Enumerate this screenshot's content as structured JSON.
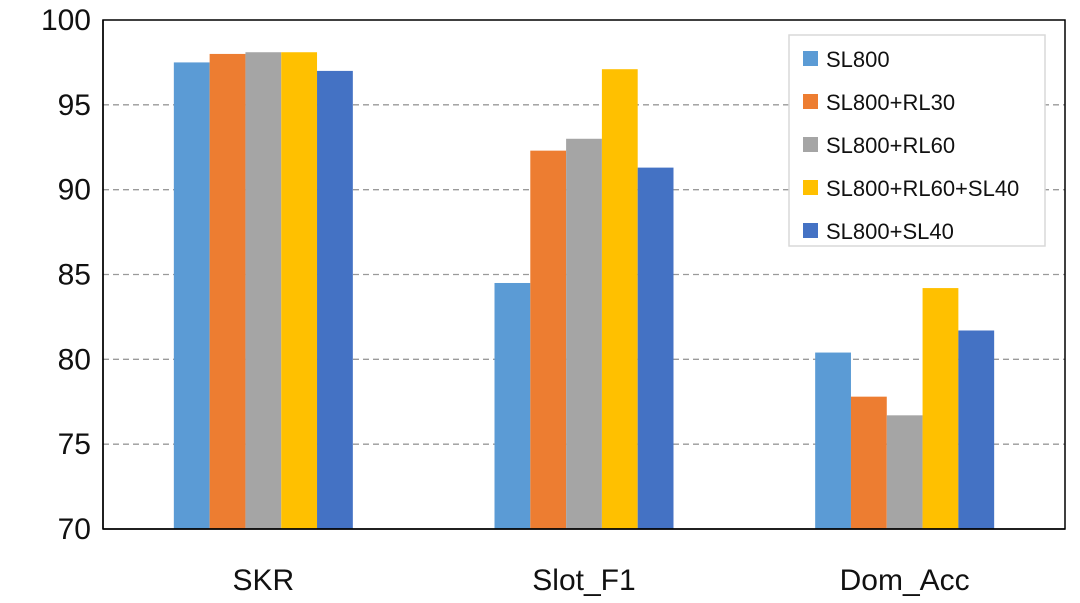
{
  "chart_data": {
    "type": "bar",
    "categories": [
      "SKR",
      "Slot_F1",
      "Dom_Acc"
    ],
    "series": [
      {
        "name": "SL800",
        "color": "#5B9BD5",
        "values": [
          97.5,
          84.5,
          80.4
        ]
      },
      {
        "name": "SL800+RL30",
        "color": "#ED7D31",
        "values": [
          98.0,
          92.3,
          77.8
        ]
      },
      {
        "name": "SL800+RL60",
        "color": "#A5A5A5",
        "values": [
          98.1,
          93.0,
          76.7
        ]
      },
      {
        "name": "SL800+RL60+SL40",
        "color": "#FFC000",
        "values": [
          98.1,
          97.1,
          84.2
        ]
      },
      {
        "name": "SL800+SL40",
        "color": "#4472C4",
        "values": [
          97.0,
          91.3,
          81.7
        ]
      }
    ],
    "ylim": [
      70,
      100
    ],
    "yticks": [
      70,
      75,
      80,
      85,
      90,
      95,
      100
    ],
    "grid": "horizontal dashed",
    "legend_position": "top-right"
  }
}
